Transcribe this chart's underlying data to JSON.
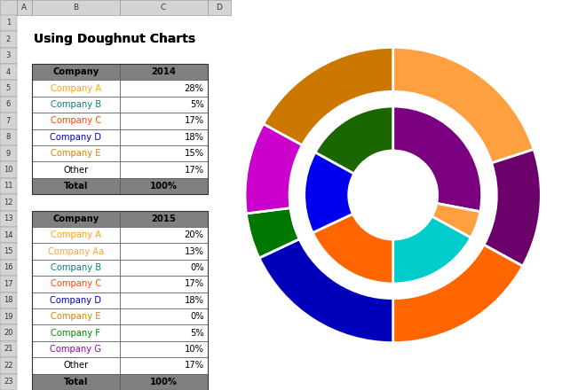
{
  "title": "Using Doughnut Charts",
  "outer_ring_2015": {
    "labels": [
      "Company A",
      "Company Aa",
      "Company B",
      "Company C",
      "Company D",
      "Company E",
      "Company F",
      "Company G",
      "Other"
    ],
    "values": [
      20,
      13,
      0,
      17,
      18,
      0,
      5,
      10,
      17
    ],
    "colors": [
      "#FFA040",
      "#6B006B",
      "#008080",
      "#FF6600",
      "#0000BB",
      "#999900",
      "#007700",
      "#CC00CC",
      "#CC7700"
    ]
  },
  "inner_ring_2014": {
    "labels": [
      "Company A",
      "Company B",
      "Company C",
      "Company D",
      "Company E",
      "Other"
    ],
    "values": [
      28,
      5,
      17,
      18,
      15,
      17
    ],
    "colors": [
      "#7B0080",
      "#FFA040",
      "#00CCCC",
      "#FF6600",
      "#0000EE",
      "#1A6600"
    ]
  },
  "bg_color": "#ffffff",
  "wedge_edge_color": "#ffffff",
  "wedge_linewidth": 2.0,
  "startangle": 90,
  "company_colors_2014": [
    "#FFA500",
    "#008080",
    "#FF4500",
    "#0000CD",
    "#CC8800",
    "#000000"
  ],
  "company_colors_2015": [
    "#FFA500",
    "#FFA040",
    "#008080",
    "#FF4500",
    "#0000CD",
    "#CC8800",
    "#008800",
    "#9900AA",
    "#000000"
  ],
  "excel_col_header_bg": "#D4D4D4",
  "excel_row_header_bg": "#D4D4D4",
  "table_header_bg": "#808080",
  "grid_line_color": "#B0B0B0"
}
